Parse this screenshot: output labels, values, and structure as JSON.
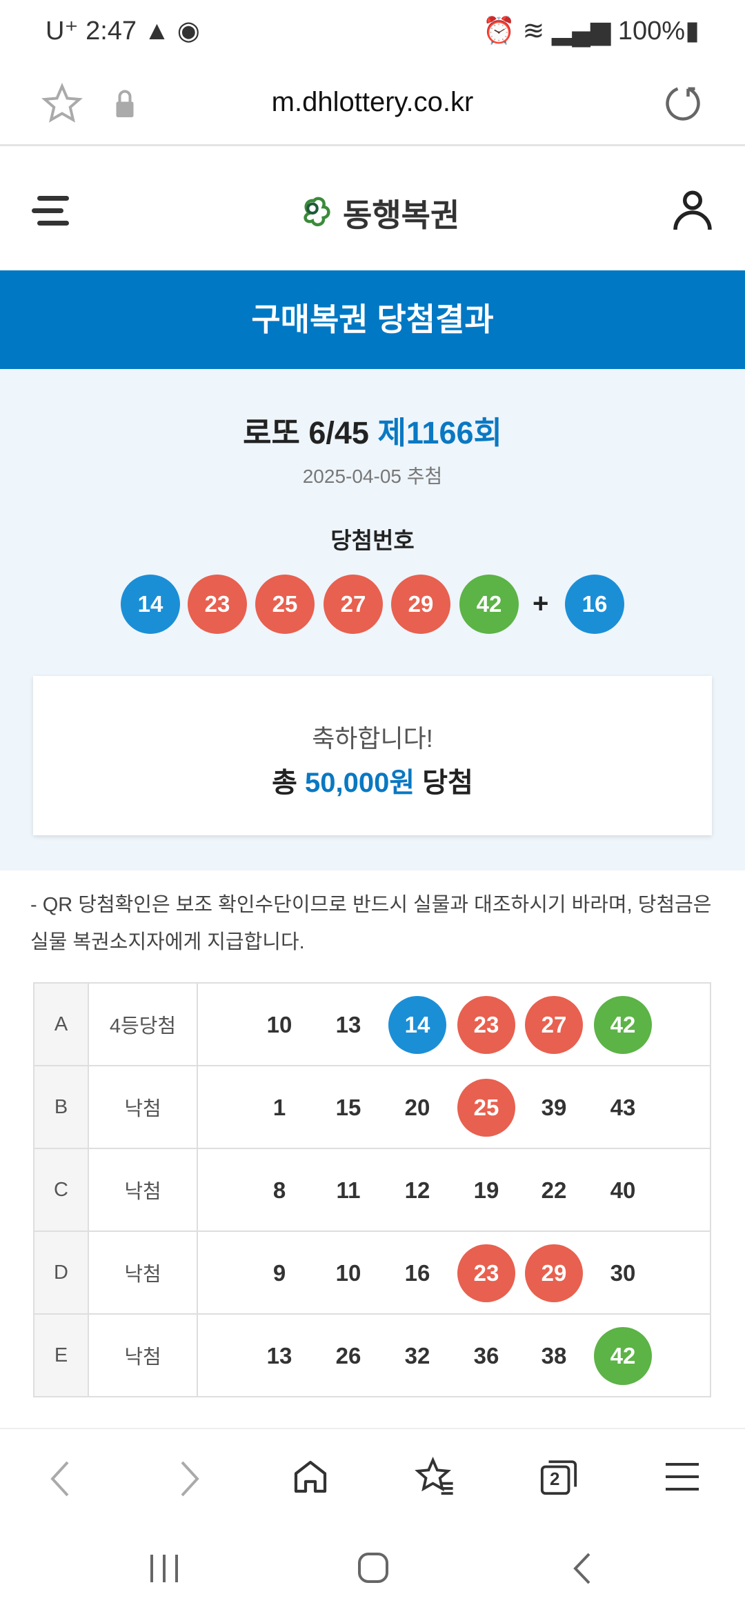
{
  "status_bar": {
    "carrier": "U⁺",
    "time": "2:47",
    "battery": "100%"
  },
  "browser": {
    "url": "m.dhlottery.co.kr",
    "tab_count": "2"
  },
  "header": {
    "logo_text": "동행복권"
  },
  "banner": {
    "title": "구매복권 당첨결과"
  },
  "draw": {
    "game": "로또 6/45",
    "round": "제1166회",
    "date": "2025-04-05 추첨",
    "label": "당첨번호",
    "numbers": [
      {
        "v": "14",
        "c": "blue"
      },
      {
        "v": "23",
        "c": "red"
      },
      {
        "v": "25",
        "c": "red"
      },
      {
        "v": "27",
        "c": "red"
      },
      {
        "v": "29",
        "c": "red"
      },
      {
        "v": "42",
        "c": "green"
      }
    ],
    "plus": "+",
    "bonus": {
      "v": "16",
      "c": "blue"
    }
  },
  "congrats": {
    "line1": "축하합니다!",
    "prefix": "총",
    "amount": "50,000원",
    "suffix": "당첨"
  },
  "notice": "- QR 당첨확인은 보조 확인수단이므로 반드시 실물과 대조하시기 바라며, 당첨금은 실물 복권소지자에게 지급합니다.",
  "games": [
    {
      "key": "A",
      "result": "4등당첨",
      "nums": [
        {
          "v": "10"
        },
        {
          "v": "13"
        },
        {
          "v": "14",
          "c": "blue"
        },
        {
          "v": "23",
          "c": "red"
        },
        {
          "v": "27",
          "c": "red"
        },
        {
          "v": "42",
          "c": "green"
        }
      ]
    },
    {
      "key": "B",
      "result": "낙첨",
      "nums": [
        {
          "v": "1"
        },
        {
          "v": "15"
        },
        {
          "v": "20"
        },
        {
          "v": "25",
          "c": "red"
        },
        {
          "v": "39"
        },
        {
          "v": "43"
        }
      ]
    },
    {
      "key": "C",
      "result": "낙첨",
      "nums": [
        {
          "v": "8"
        },
        {
          "v": "11"
        },
        {
          "v": "12"
        },
        {
          "v": "19"
        },
        {
          "v": "22"
        },
        {
          "v": "40"
        }
      ]
    },
    {
      "key": "D",
      "result": "낙첨",
      "nums": [
        {
          "v": "9"
        },
        {
          "v": "10"
        },
        {
          "v": "16"
        },
        {
          "v": "23",
          "c": "red"
        },
        {
          "v": "29",
          "c": "red"
        },
        {
          "v": "30"
        }
      ]
    },
    {
      "key": "E",
      "result": "낙첨",
      "nums": [
        {
          "v": "13"
        },
        {
          "v": "26"
        },
        {
          "v": "32"
        },
        {
          "v": "36"
        },
        {
          "v": "38"
        },
        {
          "v": "42",
          "c": "green"
        }
      ]
    }
  ],
  "colors": {
    "brand": "#0078c4",
    "blue": "#1b8fd6",
    "red": "#e8604f",
    "green": "#5cb346"
  }
}
